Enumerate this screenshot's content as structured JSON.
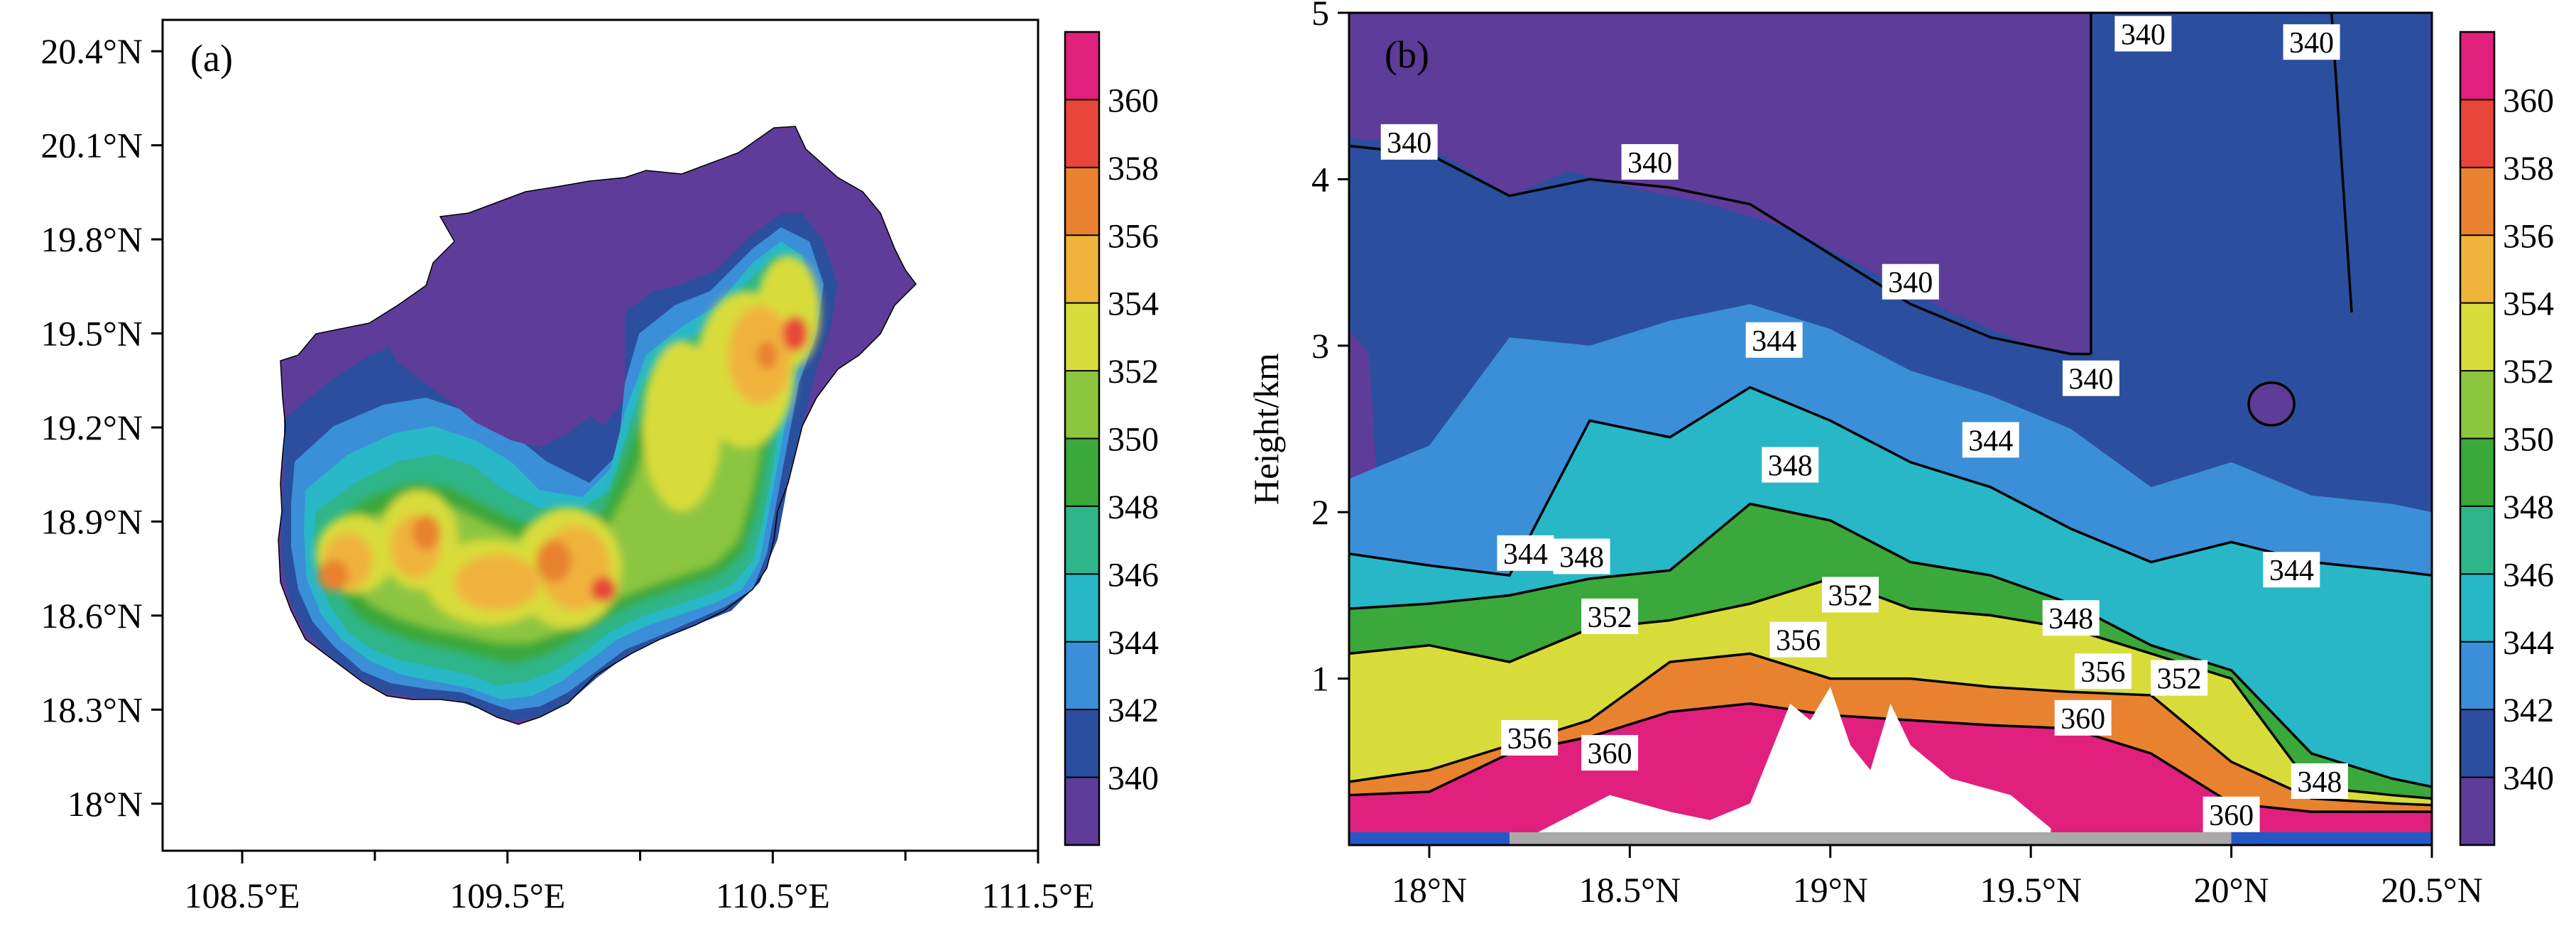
{
  "figure": {
    "panels": [
      "(a)",
      "(b)"
    ]
  },
  "colors": {
    "scale": [
      "#5e3c99",
      "#2b4f9e",
      "#3a8fd8",
      "#28b7c6",
      "#2fb58a",
      "#3aa83a",
      "#8cc63f",
      "#d8dc3a",
      "#f0b43c",
      "#e9822f",
      "#e8463a",
      "#e0207c"
    ],
    "terrain_blue": "#2458c6",
    "terrain_gray": "#a9a9a9",
    "terrain_white": "#ffffff"
  },
  "chart_data": [
    {
      "type": "heatmap",
      "panel": "(a)",
      "title": "",
      "xlabel": "",
      "ylabel": "",
      "xlim": [
        108.2,
        111.5
      ],
      "ylim": [
        17.85,
        20.5
      ],
      "x_ticks": [
        108.5,
        109.5,
        110.5,
        111.5
      ],
      "x_tick_labels": [
        "108.5°E",
        "109.5°E",
        "110.5°E",
        "111.5°E"
      ],
      "x_minor_ticks": [
        109.0,
        110.0,
        111.0
      ],
      "y_ticks": [
        18.0,
        18.3,
        18.6,
        18.9,
        19.2,
        19.5,
        19.8,
        20.1,
        20.4
      ],
      "y_tick_labels": [
        "18°N",
        "18.3°N",
        "18.6°N",
        "18.9°N",
        "19.2°N",
        "19.5°N",
        "19.8°N",
        "20.1°N",
        "20.4°N"
      ],
      "colorbar": {
        "levels": [
          340,
          342,
          344,
          346,
          348,
          350,
          352,
          354,
          356,
          358,
          360
        ],
        "tick_labels": [
          "340",
          "342",
          "344",
          "346",
          "348",
          "350",
          "352",
          "354",
          "356",
          "358",
          "360"
        ]
      },
      "hotspots": [
        {
          "lon": 108.72,
          "lat": 18.66,
          "value": 360
        },
        {
          "lon": 109.0,
          "lat": 18.7,
          "value": 356
        },
        {
          "lon": 109.25,
          "lat": 18.6,
          "value": 356
        },
        {
          "lon": 109.55,
          "lat": 18.62,
          "value": 358
        },
        {
          "lon": 109.7,
          "lat": 18.68,
          "value": 356
        },
        {
          "lon": 109.9,
          "lat": 18.64,
          "value": 358
        },
        {
          "lon": 110.05,
          "lat": 19.05,
          "value": 354
        },
        {
          "lon": 110.25,
          "lat": 19.25,
          "value": 354
        },
        {
          "lon": 110.45,
          "lat": 19.4,
          "value": 356
        },
        {
          "lon": 110.57,
          "lat": 19.5,
          "value": 360
        },
        {
          "lon": 110.5,
          "lat": 19.7,
          "value": 354
        }
      ]
    },
    {
      "type": "heatmap",
      "panel": "(b)",
      "title": "",
      "xlabel": "",
      "ylabel": "Height/km",
      "xlim": [
        17.8,
        20.5
      ],
      "ylim": [
        0,
        5
      ],
      "x_ticks": [
        18.0,
        18.5,
        19.0,
        19.5,
        20.0,
        20.5
      ],
      "x_tick_labels": [
        "18°N",
        "18.5°N",
        "19°N",
        "19.5°N",
        "20°N",
        "20.5°N"
      ],
      "y_ticks": [
        1,
        2,
        3,
        4,
        5
      ],
      "y_tick_labels": [
        "1",
        "2",
        "3",
        "4",
        "5"
      ],
      "colorbar": {
        "levels": [
          340,
          342,
          344,
          346,
          348,
          350,
          352,
          354,
          356,
          358,
          360
        ],
        "tick_labels": [
          "340",
          "342",
          "344",
          "346",
          "348",
          "350",
          "352",
          "354",
          "356",
          "358",
          "360"
        ]
      },
      "contour_profiles": [
        {
          "value": 340,
          "x": [
            17.8,
            18.0,
            18.2,
            18.4,
            18.6,
            18.8,
            19.0,
            19.2,
            19.4,
            19.6,
            19.65
          ],
          "y": [
            4.2,
            4.15,
            3.9,
            4.0,
            3.95,
            3.85,
            3.55,
            3.25,
            3.05,
            2.95,
            2.95
          ]
        },
        {
          "value": 344,
          "x": [
            17.8,
            18.0,
            18.2,
            18.4,
            18.6,
            18.8,
            19.0,
            19.2,
            19.4,
            19.6,
            19.8,
            20.0,
            20.2,
            20.4,
            20.5
          ],
          "y": [
            1.75,
            1.68,
            1.62,
            2.55,
            2.45,
            2.75,
            2.55,
            2.3,
            2.15,
            1.9,
            1.7,
            1.82,
            1.7,
            1.65,
            1.62
          ]
        },
        {
          "value": 348,
          "x": [
            17.8,
            18.0,
            18.2,
            18.4,
            18.6,
            18.8,
            19.0,
            19.2,
            19.4,
            19.6,
            19.8,
            20.0,
            20.2,
            20.4,
            20.5
          ],
          "y": [
            1.42,
            1.45,
            1.5,
            1.6,
            1.65,
            2.05,
            1.95,
            1.7,
            1.62,
            1.45,
            1.2,
            1.05,
            0.55,
            0.4,
            0.35
          ]
        },
        {
          "value": 352,
          "x": [
            17.8,
            18.0,
            18.2,
            18.4,
            18.6,
            18.8,
            19.0,
            19.2,
            19.4,
            19.6,
            19.8,
            20.0,
            20.2,
            20.4,
            20.5
          ],
          "y": [
            1.15,
            1.2,
            1.1,
            1.3,
            1.35,
            1.45,
            1.6,
            1.42,
            1.38,
            1.3,
            1.15,
            1.0,
            0.35,
            0.3,
            0.28
          ]
        },
        {
          "value": 356,
          "x": [
            17.8,
            18.0,
            18.2,
            18.4,
            18.6,
            18.8,
            19.0,
            19.2,
            19.4,
            19.6,
            19.8,
            20.0,
            20.2,
            20.4,
            20.5
          ],
          "y": [
            0.38,
            0.45,
            0.6,
            0.75,
            1.1,
            1.15,
            1.0,
            1.0,
            0.95,
            0.92,
            0.9,
            0.5,
            0.28,
            0.25,
            0.24
          ]
        },
        {
          "value": 360,
          "x": [
            17.8,
            18.0,
            18.2,
            18.4,
            18.6,
            18.8,
            19.0,
            19.2,
            19.4,
            19.6,
            19.8,
            20.0,
            20.2,
            20.4,
            20.5
          ],
          "y": [
            0.3,
            0.32,
            0.55,
            0.65,
            0.8,
            0.85,
            0.78,
            0.75,
            0.72,
            0.7,
            0.55,
            0.25,
            0.2,
            0.2,
            0.2
          ]
        }
      ],
      "closed_contours": [
        {
          "value": 340,
          "x": 20.1,
          "y": 2.65
        }
      ],
      "contour_labels": [
        {
          "text": "340",
          "x": 17.95,
          "y": 4.22
        },
        {
          "text": "340",
          "x": 18.55,
          "y": 4.1
        },
        {
          "text": "340",
          "x": 19.2,
          "y": 3.38
        },
        {
          "text": "340",
          "x": 19.78,
          "y": 4.87
        },
        {
          "text": "340",
          "x": 20.2,
          "y": 4.82
        },
        {
          "text": "340",
          "x": 19.65,
          "y": 2.8
        },
        {
          "text": "344",
          "x": 18.86,
          "y": 3.03
        },
        {
          "text": "344",
          "x": 19.4,
          "y": 2.43
        },
        {
          "text": "344",
          "x": 18.24,
          "y": 1.75
        },
        {
          "text": "344",
          "x": 20.15,
          "y": 1.65
        },
        {
          "text": "348",
          "x": 18.38,
          "y": 1.73
        },
        {
          "text": "348",
          "x": 18.9,
          "y": 2.28
        },
        {
          "text": "348",
          "x": 19.6,
          "y": 1.36
        },
        {
          "text": "348",
          "x": 20.22,
          "y": 0.38
        },
        {
          "text": "352",
          "x": 18.45,
          "y": 1.37
        },
        {
          "text": "352",
          "x": 19.05,
          "y": 1.5
        },
        {
          "text": "352",
          "x": 19.87,
          "y": 1.0
        },
        {
          "text": "356",
          "x": 18.25,
          "y": 0.64
        },
        {
          "text": "356",
          "x": 18.92,
          "y": 1.23
        },
        {
          "text": "356",
          "x": 19.68,
          "y": 1.04
        },
        {
          "text": "360",
          "x": 18.45,
          "y": 0.55
        },
        {
          "text": "360",
          "x": 19.63,
          "y": 0.76
        },
        {
          "text": "360",
          "x": 20.0,
          "y": 0.18
        }
      ],
      "terrain_bar": [
        {
          "from": 17.8,
          "to": 18.2,
          "surface": "blue"
        },
        {
          "from": 18.2,
          "to": 20.0,
          "surface": "gray"
        },
        {
          "from": 20.0,
          "to": 20.5,
          "surface": "blue"
        }
      ],
      "terrain": {
        "x": [
          18.25,
          18.45,
          18.6,
          18.7,
          18.8,
          18.85,
          18.9,
          18.95,
          19.0,
          19.05,
          19.1,
          19.15,
          19.2,
          19.3,
          19.45,
          19.55
        ],
        "height": [
          0.05,
          0.3,
          0.2,
          0.15,
          0.25,
          0.55,
          0.85,
          0.75,
          0.95,
          0.6,
          0.45,
          0.85,
          0.6,
          0.4,
          0.3,
          0.1
        ]
      }
    }
  ]
}
